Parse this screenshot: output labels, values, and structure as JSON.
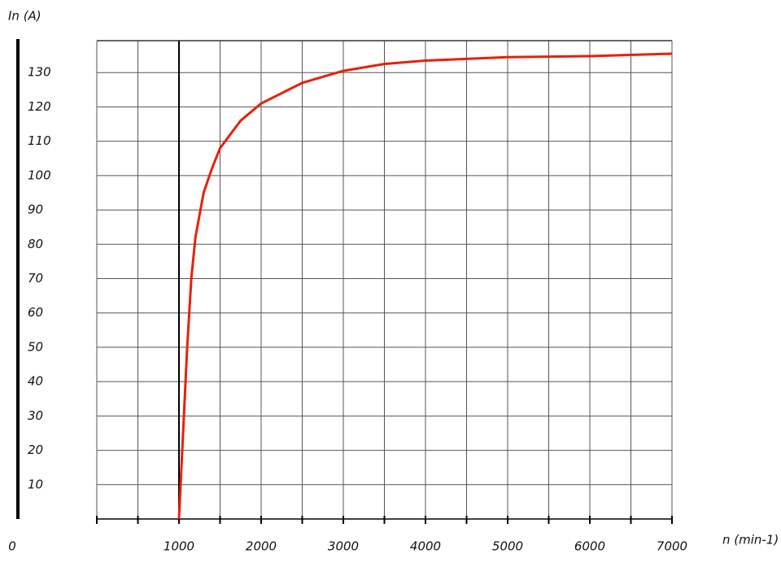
{
  "chart_data": {
    "type": "line",
    "y_label": "In (A)",
    "x_label": "n (min-1)",
    "x": [
      1000,
      1050,
      1100,
      1150,
      1200,
      1300,
      1400,
      1500,
      1750,
      2000,
      2500,
      3000,
      3500,
      4000,
      5000,
      6000,
      7000
    ],
    "series": [
      {
        "name": "In",
        "color": "#e8200c",
        "values": [
          0,
          25,
          50,
          70,
          82,
          95,
          102,
          108,
          116,
          121,
          127,
          130.5,
          132.5,
          133.5,
          134.5,
          134.8,
          135.5
        ]
      }
    ],
    "xlim": [
      0,
      7000
    ],
    "xticks": [
      0,
      1000,
      2000,
      3000,
      4000,
      5000,
      6000,
      7000
    ],
    "ylim": [
      0,
      140
    ],
    "yticks": [
      10,
      20,
      30,
      40,
      50,
      60,
      70,
      80,
      90,
      100,
      110,
      120,
      130
    ],
    "grid": true
  }
}
